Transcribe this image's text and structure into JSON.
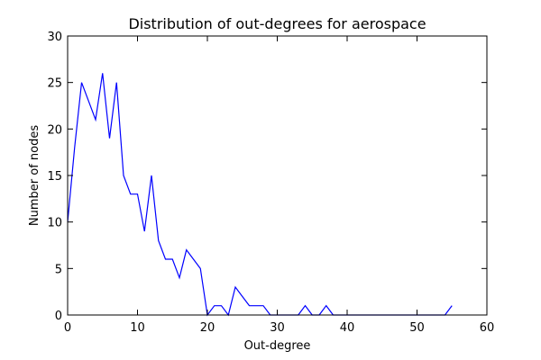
{
  "chart_data": {
    "type": "line",
    "title": "Distribution of out-degrees for aerospace",
    "xlabel": "Out-degree",
    "ylabel": "Number of nodes",
    "xlim": [
      0,
      60
    ],
    "ylim": [
      0,
      30
    ],
    "xticks": [
      0,
      10,
      20,
      30,
      40,
      50,
      60
    ],
    "yticks": [
      0,
      5,
      10,
      15,
      20,
      25,
      30
    ],
    "grid": false,
    "line_color": "#0000ff",
    "series": [
      {
        "x": [
          0,
          1,
          2,
          3,
          4,
          5,
          6,
          7,
          8,
          9,
          10,
          11,
          12,
          13,
          14,
          15,
          16,
          17,
          18,
          19,
          20,
          21,
          22,
          23,
          24,
          25,
          26,
          27,
          28,
          29,
          30,
          31,
          32,
          33,
          34,
          35,
          36,
          37,
          38,
          39,
          40,
          41,
          42,
          43,
          44,
          45,
          46,
          47,
          48,
          49,
          50,
          51,
          52,
          53,
          54,
          55
        ],
        "values": [
          10,
          18,
          25,
          23,
          21,
          26,
          19,
          25,
          15,
          13,
          13,
          9,
          15,
          8,
          6,
          6,
          4,
          7,
          6,
          5,
          0,
          1,
          1,
          0,
          3,
          2,
          1,
          1,
          1,
          0,
          0,
          0,
          0,
          0,
          1,
          0,
          0,
          1,
          0,
          0,
          0,
          0,
          0,
          0,
          0,
          0,
          0,
          0,
          0,
          0,
          0,
          0,
          0,
          0,
          0,
          1
        ]
      }
    ]
  }
}
